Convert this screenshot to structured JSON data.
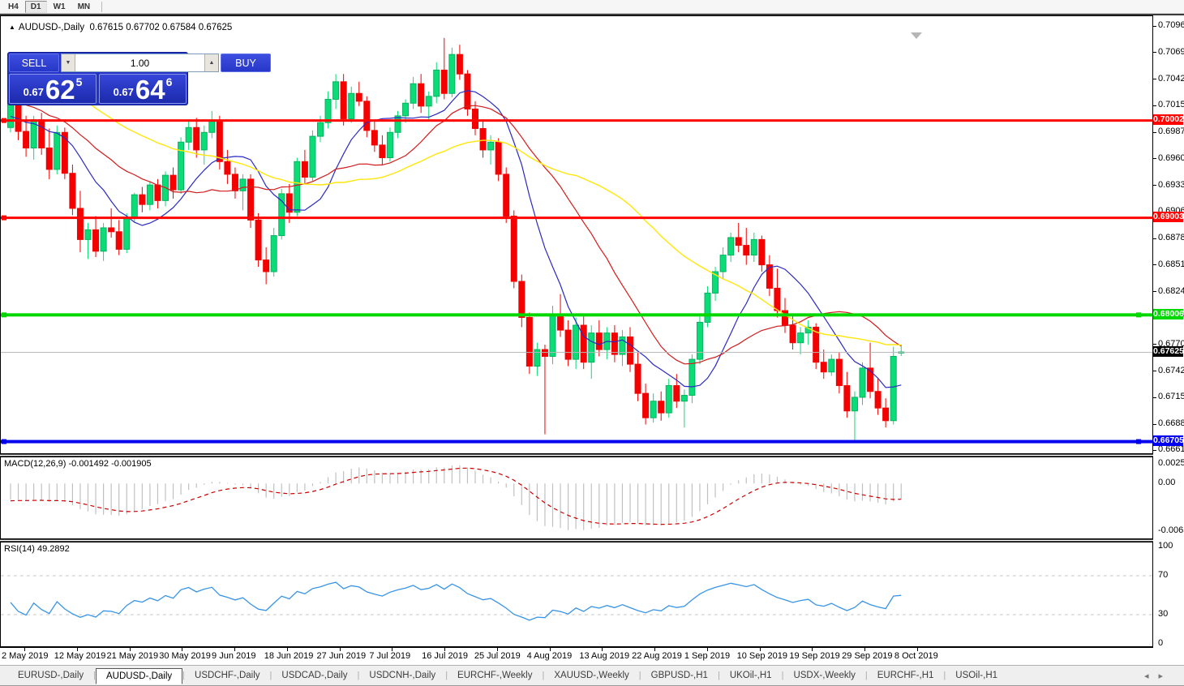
{
  "window": {
    "toolbar": {
      "buttons": [
        "H4",
        "D1",
        "W1",
        "MN"
      ],
      "active_index": 1
    }
  },
  "chart_title": {
    "collapse_icon": "▲",
    "symbol_tf": "AUDUSD-,Daily",
    "ohlc": "0.67615 0.67702 0.67584 0.67625"
  },
  "trade_panel": {
    "sell_label": "SELL",
    "buy_label": "BUY",
    "volume": "1.00",
    "vol_down_icon": "▼",
    "vol_up_icon": "▲",
    "sell_price": {
      "prefix": "0.67",
      "big": "62",
      "sup": "5"
    },
    "buy_price": {
      "prefix": "0.67",
      "big": "64",
      "sup": "6"
    }
  },
  "tabs": {
    "items": [
      "EURUSD-,Daily",
      "AUDUSD-,Daily",
      "USDCHF-,Daily",
      "USDCAD-,Daily",
      "USDCNH-,Daily",
      "EURCHF-,Weekly",
      "XAUUSD-,Weekly",
      "GBPUSD-,H1",
      "UKOil-,H1",
      "USDX-,Weekly",
      "EURCHF-,H1",
      "USOil-,H1"
    ],
    "active_index": 1,
    "scroll_left_icon": "◂",
    "scroll_right_icon": "▸"
  },
  "chart_data": {
    "type": "candlestick",
    "symbol": "AUDUSD-",
    "timeframe": "Daily",
    "current_bar": {
      "open": "0.67615",
      "high": "0.67702",
      "low": "0.67584",
      "close": "0.67625"
    },
    "colors": {
      "bull": "#0bdc78",
      "bull_edge": "#07b25f",
      "bear": "#f40000",
      "ma_fast": "#2a2ac4",
      "ma_mid": "#d41a1a",
      "ma_slow": "#ffe60a",
      "hist": "#c0c0c0",
      "signal": "#cc0000",
      "rsi": "#3894e8",
      "level_dash": "#c8c8c8",
      "price_line": "#b8b8b8"
    },
    "price_axis": {
      "ylim": [
        0.66585,
        0.71073
      ],
      "ticks": [
        "0.70965",
        "0.70695",
        "0.70420",
        "0.70150",
        "0.69875",
        "0.69605",
        "0.69330",
        "0.69060",
        "0.68785",
        "0.68515",
        "0.68240",
        "0.67970",
        "0.67700",
        "0.67425",
        "0.67155",
        "0.66880",
        "0.66610"
      ]
    },
    "hlines": [
      {
        "label": "0.70002",
        "value": 0.70002,
        "color": "#ff0400",
        "thickness": 3,
        "handles": "left"
      },
      {
        "label": "0.69003",
        "value": 0.69003,
        "color": "#ff0400",
        "thickness": 3,
        "handles": "left"
      },
      {
        "label": "0.68006",
        "value": 0.68006,
        "color": "#00d800",
        "thickness": 4,
        "handles": "both"
      },
      {
        "label": "0.66705",
        "value": 0.66705,
        "color": "#0000f0",
        "thickness": 4,
        "handles": "both"
      }
    ],
    "current_price": {
      "label": "0.67625",
      "value": 0.67625,
      "badge_color": "#000000"
    },
    "x_axis": {
      "labels": [
        "2 May 2019",
        "12 May 2019",
        "21 May 2019",
        "30 May 2019",
        "9 Jun 2019",
        "18 Jun 2019",
        "27 Jun 2019",
        "7 Jul 2019",
        "16 Jul 2019",
        "25 Jul 2019",
        "4 Aug 2019",
        "13 Aug 2019",
        "22 Aug 2019",
        "1 Sep 2019",
        "10 Sep 2019",
        "19 Sep 2019",
        "29 Sep 2019",
        "8 Oct 2019"
      ]
    },
    "ma": [
      {
        "period": 10,
        "color_key": "ma_fast",
        "width": 1.2
      },
      {
        "period": 21,
        "color_key": "ma_mid",
        "width": 1.2
      },
      {
        "period": 40,
        "color_key": "ma_slow",
        "width": 1.4
      }
    ],
    "ma_seed_closes": [
      0.7128,
      0.7122,
      0.7126,
      0.7118,
      0.7112,
      0.7116,
      0.7108,
      0.7104,
      0.711,
      0.71,
      0.7105,
      0.7098,
      0.7102,
      0.7092,
      0.7085,
      0.709,
      0.7078,
      0.707,
      0.7075,
      0.7065,
      0.7058,
      0.7062,
      0.705,
      0.7045,
      0.7052,
      0.704,
      0.7032,
      0.7038,
      0.7028,
      0.702,
      0.7026,
      0.7015,
      0.7008,
      0.7014,
      0.7005,
      0.6998,
      0.7004,
      0.6996,
      0.699,
      0.6996
    ],
    "ohlc": [
      [
        0.6993,
        0.7027,
        0.6988,
        0.7019
      ],
      [
        0.7019,
        0.7043,
        0.698,
        0.6989
      ],
      [
        0.6989,
        0.7005,
        0.6963,
        0.6972
      ],
      [
        0.6972,
        0.7005,
        0.696,
        0.7001
      ],
      [
        0.7001,
        0.7008,
        0.6965,
        0.6972
      ],
      [
        0.6972,
        0.6992,
        0.694,
        0.695
      ],
      [
        0.695,
        0.6995,
        0.6945,
        0.6988
      ],
      [
        0.6988,
        0.6993,
        0.694,
        0.6946
      ],
      [
        0.6946,
        0.6955,
        0.6903,
        0.691
      ],
      [
        0.691,
        0.6928,
        0.6865,
        0.6878
      ],
      [
        0.6878,
        0.6895,
        0.6858,
        0.6888
      ],
      [
        0.6888,
        0.6902,
        0.686,
        0.6866
      ],
      [
        0.6866,
        0.6895,
        0.6856,
        0.689
      ],
      [
        0.689,
        0.691,
        0.688,
        0.6886
      ],
      [
        0.6886,
        0.6898,
        0.6862,
        0.6868
      ],
      [
        0.6868,
        0.6905,
        0.6864,
        0.6901
      ],
      [
        0.6901,
        0.6926,
        0.6896,
        0.6924
      ],
      [
        0.6924,
        0.6932,
        0.6906,
        0.6914
      ],
      [
        0.6914,
        0.6938,
        0.6908,
        0.6934
      ],
      [
        0.6934,
        0.694,
        0.691,
        0.6918
      ],
      [
        0.6918,
        0.6948,
        0.6912,
        0.6944
      ],
      [
        0.6944,
        0.6952,
        0.692,
        0.6929
      ],
      [
        0.6929,
        0.6983,
        0.6925,
        0.6978
      ],
      [
        0.6978,
        0.7,
        0.697,
        0.6993
      ],
      [
        0.6993,
        0.7003,
        0.6962,
        0.697
      ],
      [
        0.697,
        0.6995,
        0.6955,
        0.6988
      ],
      [
        0.6988,
        0.701,
        0.6982,
        0.7
      ],
      [
        0.7,
        0.7005,
        0.695,
        0.6958
      ],
      [
        0.6958,
        0.697,
        0.6935,
        0.6945
      ],
      [
        0.6945,
        0.6952,
        0.692,
        0.6928
      ],
      [
        0.6928,
        0.6945,
        0.6908,
        0.694
      ],
      [
        0.694,
        0.6945,
        0.689,
        0.6898
      ],
      [
        0.6898,
        0.6905,
        0.685,
        0.6857
      ],
      [
        0.6857,
        0.687,
        0.6832,
        0.6845
      ],
      [
        0.6845,
        0.689,
        0.684,
        0.6882
      ],
      [
        0.6882,
        0.693,
        0.6878,
        0.6925
      ],
      [
        0.6925,
        0.6935,
        0.6895,
        0.6906
      ],
      [
        0.6906,
        0.6962,
        0.6902,
        0.6958
      ],
      [
        0.6958,
        0.697,
        0.6935,
        0.6942
      ],
      [
        0.6942,
        0.699,
        0.6938,
        0.6984
      ],
      [
        0.6984,
        0.7005,
        0.6978,
        0.6998
      ],
      [
        0.6998,
        0.703,
        0.6992,
        0.7022
      ],
      [
        0.7022,
        0.7048,
        0.7012,
        0.704
      ],
      [
        0.704,
        0.7048,
        0.6995,
        0.7002
      ],
      [
        0.7002,
        0.7035,
        0.6998,
        0.7028
      ],
      [
        0.7028,
        0.704,
        0.7015,
        0.702
      ],
      [
        0.702,
        0.7025,
        0.6983,
        0.699
      ],
      [
        0.699,
        0.7,
        0.6968,
        0.6975
      ],
      [
        0.6975,
        0.6985,
        0.6955,
        0.6962
      ],
      [
        0.6962,
        0.6993,
        0.6958,
        0.6988
      ],
      [
        0.6988,
        0.701,
        0.6982,
        0.7005
      ],
      [
        0.7005,
        0.7022,
        0.6998,
        0.7018
      ],
      [
        0.7018,
        0.7045,
        0.7012,
        0.7038
      ],
      [
        0.7038,
        0.7048,
        0.7008,
        0.7015
      ],
      [
        0.7015,
        0.703,
        0.7,
        0.7025
      ],
      [
        0.7025,
        0.706,
        0.7018,
        0.7052
      ],
      [
        0.7052,
        0.7085,
        0.7022,
        0.7028
      ],
      [
        0.7028,
        0.7075,
        0.7024,
        0.7068
      ],
      [
        0.7068,
        0.7078,
        0.7042,
        0.7048
      ],
      [
        0.7048,
        0.7052,
        0.7005,
        0.7012
      ],
      [
        0.7012,
        0.702,
        0.6985,
        0.6992
      ],
      [
        0.6992,
        0.7,
        0.6962,
        0.697
      ],
      [
        0.697,
        0.6985,
        0.6955,
        0.6978
      ],
      [
        0.6978,
        0.6982,
        0.6938,
        0.6945
      ],
      [
        0.6945,
        0.6952,
        0.6895,
        0.6902
      ],
      [
        0.6902,
        0.6908,
        0.6828,
        0.6835
      ],
      [
        0.6835,
        0.6842,
        0.6788,
        0.6798
      ],
      [
        0.6798,
        0.6803,
        0.674,
        0.6748
      ],
      [
        0.6748,
        0.6772,
        0.6738,
        0.6765
      ],
      [
        0.6765,
        0.677,
        0.6678,
        0.6758
      ],
      [
        0.6758,
        0.681,
        0.675,
        0.68
      ],
      [
        0.68,
        0.6822,
        0.6778,
        0.6785
      ],
      [
        0.6785,
        0.6795,
        0.6748,
        0.6755
      ],
      [
        0.6755,
        0.6798,
        0.6745,
        0.679
      ],
      [
        0.679,
        0.68,
        0.6745,
        0.6752
      ],
      [
        0.6752,
        0.679,
        0.6735,
        0.6782
      ],
      [
        0.6782,
        0.6795,
        0.6758,
        0.6765
      ],
      [
        0.6765,
        0.6788,
        0.6755,
        0.6782
      ],
      [
        0.6782,
        0.679,
        0.6752,
        0.676
      ],
      [
        0.676,
        0.6785,
        0.6748,
        0.6778
      ],
      [
        0.6778,
        0.6788,
        0.6742,
        0.675
      ],
      [
        0.675,
        0.6762,
        0.6712,
        0.672
      ],
      [
        0.672,
        0.673,
        0.6688,
        0.6695
      ],
      [
        0.6695,
        0.672,
        0.669,
        0.6712
      ],
      [
        0.6712,
        0.6722,
        0.6692,
        0.67
      ],
      [
        0.67,
        0.6735,
        0.6695,
        0.6728
      ],
      [
        0.6728,
        0.674,
        0.6705,
        0.6712
      ],
      [
        0.6712,
        0.6724,
        0.6685,
        0.6718
      ],
      [
        0.6718,
        0.676,
        0.671,
        0.6755
      ],
      [
        0.6755,
        0.68,
        0.675,
        0.6793
      ],
      [
        0.6793,
        0.683,
        0.6788,
        0.6823
      ],
      [
        0.6823,
        0.685,
        0.6815,
        0.6845
      ],
      [
        0.6845,
        0.687,
        0.6838,
        0.6862
      ],
      [
        0.6862,
        0.6885,
        0.6855,
        0.688
      ],
      [
        0.688,
        0.6895,
        0.6865,
        0.6872
      ],
      [
        0.6872,
        0.689,
        0.6852,
        0.6862
      ],
      [
        0.6862,
        0.6885,
        0.6855,
        0.6878
      ],
      [
        0.6878,
        0.6882,
        0.6845,
        0.6852
      ],
      [
        0.6852,
        0.6862,
        0.682,
        0.6828
      ],
      [
        0.6828,
        0.6848,
        0.6798,
        0.6805
      ],
      [
        0.6805,
        0.6818,
        0.6782,
        0.679
      ],
      [
        0.679,
        0.68,
        0.6765,
        0.6772
      ],
      [
        0.6772,
        0.6788,
        0.676,
        0.6782
      ],
      [
        0.6782,
        0.6795,
        0.677,
        0.6788
      ],
      [
        0.6788,
        0.6792,
        0.6745,
        0.6752
      ],
      [
        0.6752,
        0.6765,
        0.6735,
        0.6742
      ],
      [
        0.6742,
        0.676,
        0.6738,
        0.6755
      ],
      [
        0.6755,
        0.6762,
        0.672,
        0.6728
      ],
      [
        0.6728,
        0.6742,
        0.6695,
        0.6702
      ],
      [
        0.6702,
        0.6722,
        0.667,
        0.6716
      ],
      [
        0.6716,
        0.6752,
        0.6708,
        0.6746
      ],
      [
        0.6746,
        0.6772,
        0.6715,
        0.6722
      ],
      [
        0.6722,
        0.6735,
        0.6698,
        0.6705
      ],
      [
        0.6705,
        0.6715,
        0.6685,
        0.6692
      ],
      [
        0.6692,
        0.6768,
        0.6688,
        0.6758
      ],
      [
        0.67615,
        0.67702,
        0.67584,
        0.67625
      ]
    ],
    "macd": {
      "label": "MACD(12,26,9)",
      "values_text": "-0.001492 -0.001905",
      "fast": 12,
      "slow": 26,
      "signal": 9,
      "ylim": [
        -0.00719,
        0.00343
      ],
      "ticks": [
        "0.002574",
        "0.00",
        "-0.006326"
      ],
      "tick_values": [
        0.002574,
        0,
        -0.006326
      ]
    },
    "rsi": {
      "label": "RSI(14)",
      "value_text": "49.2892",
      "period": 14,
      "levels": [
        70,
        30
      ],
      "ticks": [
        "100",
        "70",
        "30",
        "0"
      ],
      "tick_values": [
        100,
        70,
        30,
        0
      ]
    }
  }
}
